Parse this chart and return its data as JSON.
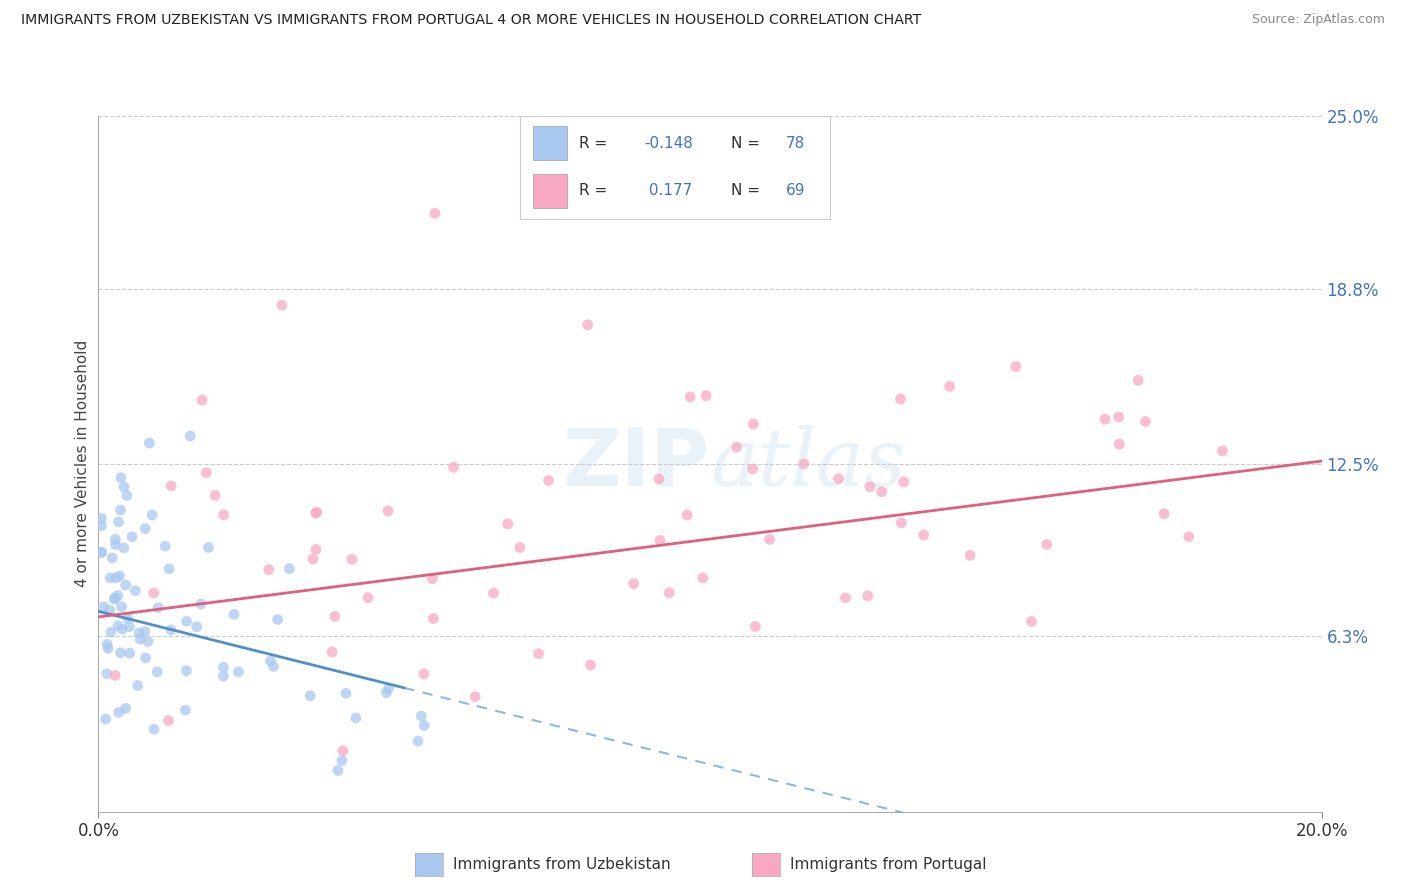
{
  "title": "IMMIGRANTS FROM UZBEKISTAN VS IMMIGRANTS FROM PORTUGAL 4 OR MORE VEHICLES IN HOUSEHOLD CORRELATION CHART",
  "source": "Source: ZipAtlas.com",
  "ylabel": "4 or more Vehicles in Household",
  "legend_label1": "Immigrants from Uzbekistan",
  "legend_label2": "Immigrants from Portugal",
  "R1": -0.148,
  "N1": 78,
  "R2": 0.177,
  "N2": 69,
  "color_uzbek": "#a8c8f0",
  "color_portugal": "#f8a8c0",
  "color_uzbek_line": "#5090c8",
  "color_portugal_line": "#e06080",
  "color_dashed": "#90b8d8",
  "xlim": [
    0.0,
    20.0
  ],
  "ylim": [
    0.0,
    25.0
  ],
  "ytick_vals": [
    0.0,
    6.3,
    12.5,
    18.8,
    25.0
  ],
  "ytick_labels": [
    "",
    "6.3%",
    "12.5%",
    "18.8%",
    "25.0%"
  ],
  "background_color": "#ffffff",
  "title_fontsize": 10.5,
  "tick_color": "#4472c4"
}
